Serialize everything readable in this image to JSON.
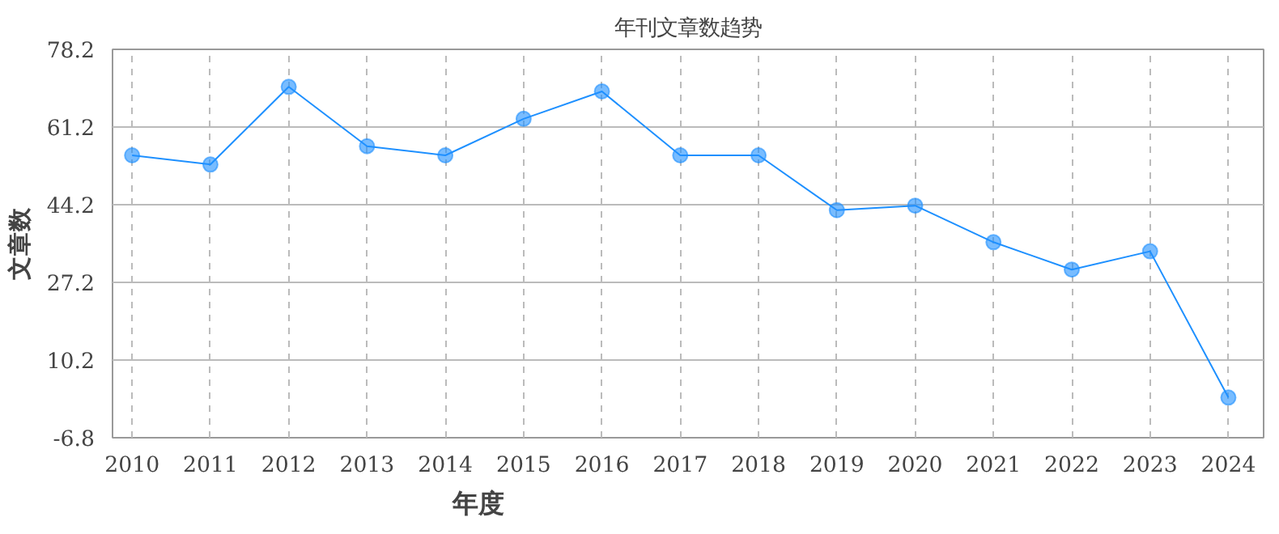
{
  "chart_data": {
    "type": "line",
    "title": "年刊文章数趋势",
    "xlabel": "年度",
    "ylabel": "文章数",
    "categories": [
      "2010",
      "2011",
      "2012",
      "2013",
      "2014",
      "2015",
      "2016",
      "2017",
      "2018",
      "2019",
      "2020",
      "2021",
      "2022",
      "2023",
      "2024"
    ],
    "series": [
      {
        "color": "#1e90ff",
        "values": [
          55,
          53,
          70,
          57,
          55,
          63,
          69,
          55,
          55,
          43,
          44,
          36,
          30,
          34,
          2
        ]
      }
    ],
    "ylim": [
      -6.8,
      78.2
    ],
    "yticks": [
      -6.8,
      10.2,
      27.2,
      44.2,
      61.2,
      78.2
    ],
    "grid": true,
    "marker": "circle",
    "line_style": "solid"
  }
}
